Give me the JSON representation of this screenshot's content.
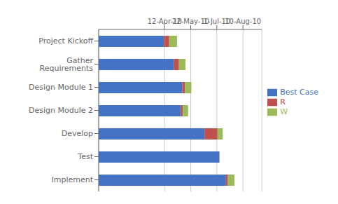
{
  "chart_data": {
    "type": "bar",
    "orientation": "horizontal",
    "stacked": true,
    "categories": [
      "Project Kickoff",
      "Gather Requirements",
      "Design Module 1",
      "Design Module 2",
      "Develop",
      "Test",
      "Implement"
    ],
    "series": [
      {
        "name": "Best Case",
        "color": "#4472C4",
        "values": [
          100,
          115,
          128,
          126,
          162,
          185,
          195
        ]
      },
      {
        "name": "R",
        "color": "#C0504D",
        "values": [
          8,
          8,
          4,
          3,
          20,
          0,
          3
        ]
      },
      {
        "name": "W",
        "color": "#9BBB59",
        "values": [
          12,
          10,
          10,
          8,
          8,
          0,
          10
        ]
      }
    ],
    "xlim": [
      0,
      250
    ],
    "xticks": [
      {
        "value": 101,
        "label": "12-Apr-10"
      },
      {
        "value": 141,
        "label": "22-May-10"
      },
      {
        "value": 181,
        "label": "1-Jul-10"
      },
      {
        "value": 221,
        "label": "10-Aug-10"
      }
    ],
    "grid": true,
    "legend": "right"
  }
}
